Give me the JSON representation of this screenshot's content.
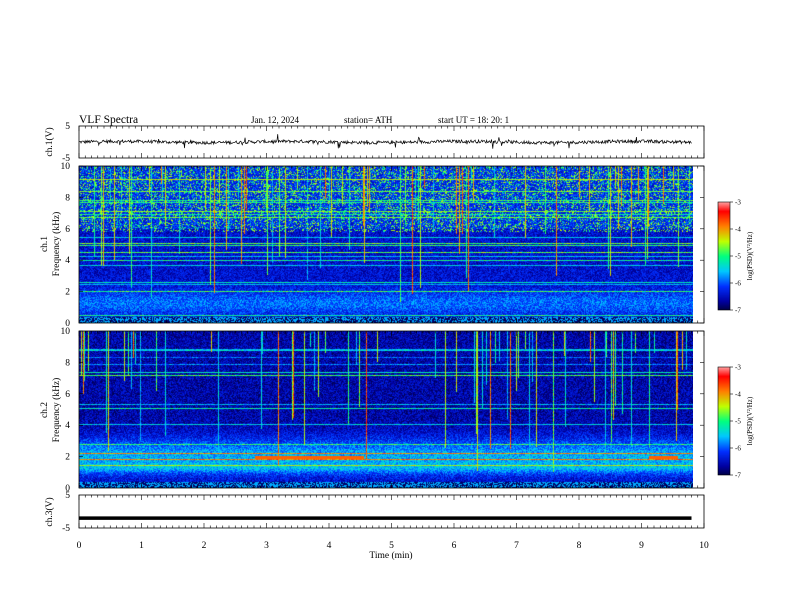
{
  "header": {
    "title": "VLF  Spectra",
    "date": "Jan.  12,  2024",
    "station": "station= ATH",
    "start": "start  UT  =    18: 20: 1"
  },
  "chart_data": [
    {
      "type": "line",
      "ylabel": "ch.1(V)",
      "ylim": [
        -5,
        5
      ],
      "yticks": [
        "5",
        "-5"
      ],
      "x_range": [
        0,
        9.8
      ],
      "description_level": 0
    },
    {
      "type": "heatmap",
      "ylabel": "Frequency  (kHz)",
      "channel_label": "ch.1",
      "ylim": [
        0,
        10
      ],
      "yticks": [
        "10",
        "8",
        "6",
        "4",
        "2",
        "0"
      ],
      "colorbar": {
        "label": "log(PSD)(V²/Hz)",
        "range": [
          -7,
          -3
        ],
        "ticks": [
          "-3",
          "-4",
          "-5",
          "-6",
          "-7"
        ]
      }
    },
    {
      "type": "heatmap",
      "ylabel": "Frequency  (kHz)",
      "channel_label": "ch.2",
      "ylim": [
        0,
        10
      ],
      "yticks": [
        "10",
        "8",
        "6",
        "4",
        "2",
        "0"
      ],
      "colorbar": {
        "label": "log(PSD)(V²/Hz)",
        "range": [
          -7,
          -3
        ],
        "ticks": [
          "-3",
          "-4",
          "-5",
          "-6",
          "-7"
        ]
      }
    },
    {
      "type": "line",
      "ylabel": "ch.3(V)",
      "ylim": [
        -5,
        5
      ],
      "yticks": [
        "5",
        "-5"
      ],
      "values": [
        -2,
        -2
      ]
    }
  ],
  "xaxis": {
    "label": "Time  (min)",
    "xlim": [
      0,
      10
    ],
    "ticks": [
      "0",
      "1",
      "2",
      "3",
      "4",
      "5",
      "6",
      "7",
      "8",
      "9",
      "10"
    ]
  },
  "colors": {
    "cmap": [
      "#000000",
      "#0000a0",
      "#0030ff",
      "#00c8ff",
      "#00ff80",
      "#c0ff00",
      "#ff8000",
      "#ff0000",
      "#ffffff"
    ]
  }
}
